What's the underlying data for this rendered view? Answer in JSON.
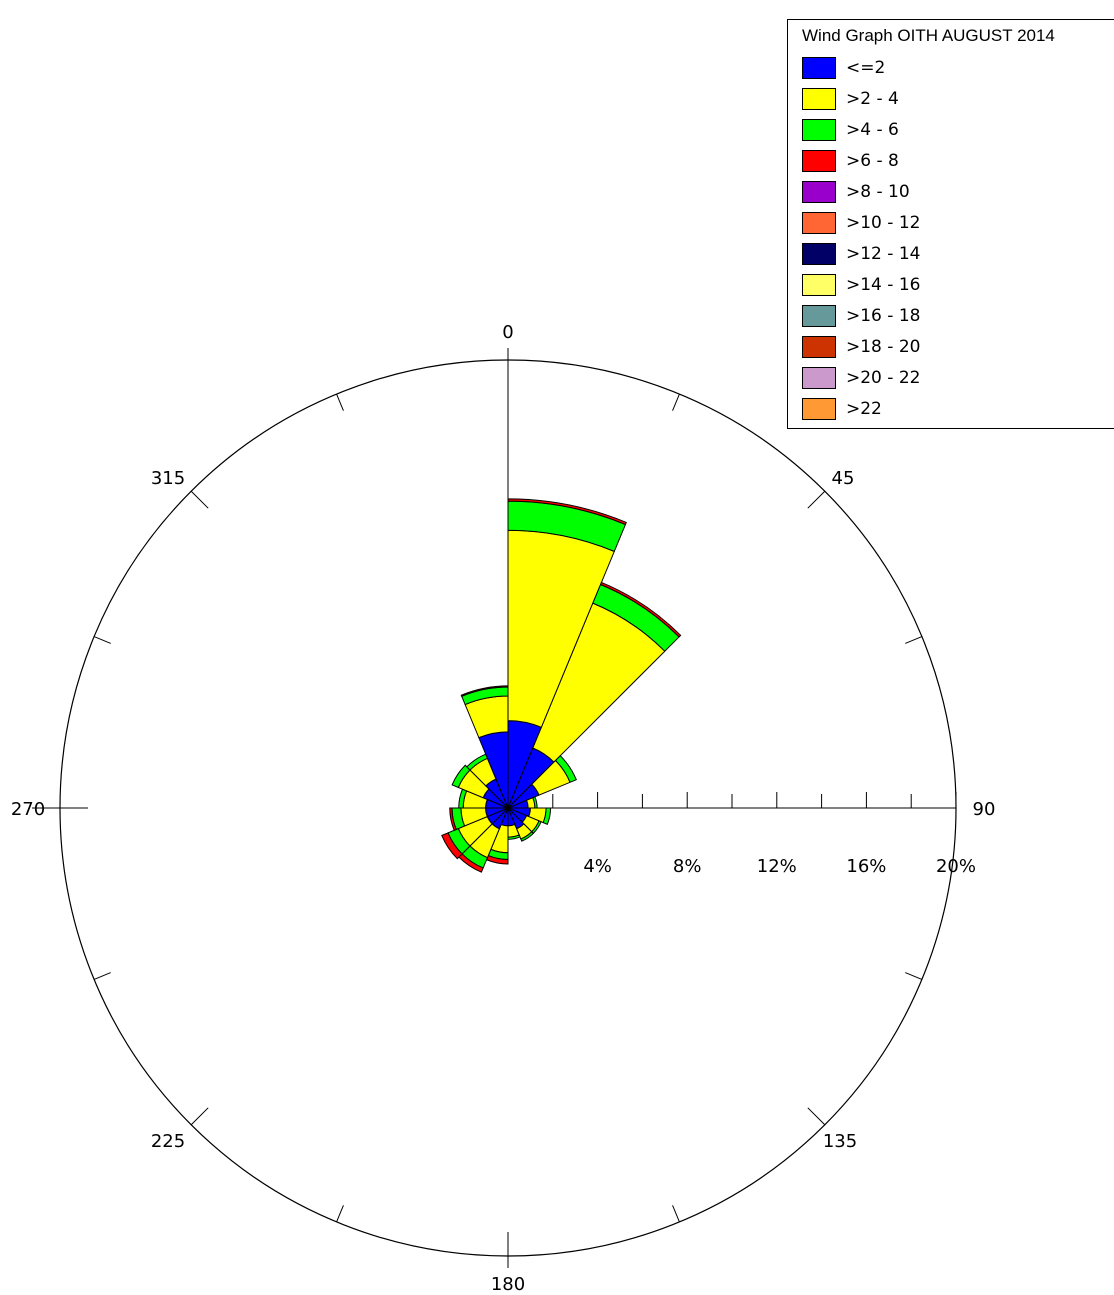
{
  "legend": {
    "title": "Wind Graph OITH AUGUST 2014"
  },
  "chart_data": {
    "type": "polar-bar",
    "title": "Wind Graph OITH AUGUST 2014",
    "direction_labels": [
      "0",
      "45",
      "90",
      "135",
      "180",
      "225",
      "270",
      "315"
    ],
    "radial_axis": {
      "max": 20,
      "ticks": [
        4,
        8,
        12,
        16,
        20
      ],
      "tick_labels": [
        "4%",
        "8%",
        "12%",
        "16%",
        "20%"
      ],
      "unit": "%"
    },
    "speed_bins": [
      {
        "label": "<=2",
        "color": "#0000FF"
      },
      {
        "label": ">2 - 4",
        "color": "#FFFF00"
      },
      {
        "label": ">4 - 6",
        "color": "#00FF00"
      },
      {
        "label": ">6 - 8",
        "color": "#FF0000"
      },
      {
        "label": ">8 - 10",
        "color": "#9900CC"
      },
      {
        "label": ">10 - 12",
        "color": "#FF6633"
      },
      {
        "label": ">12 - 14",
        "color": "#000066"
      },
      {
        "label": ">14 - 16",
        "color": "#FFFF66"
      },
      {
        "label": ">16 - 18",
        "color": "#669999"
      },
      {
        "label": ">18 - 20",
        "color": "#CC3300"
      },
      {
        "label": ">20 - 22",
        "color": "#CC99CC"
      },
      {
        "label": ">22",
        "color": "#FF9933"
      }
    ],
    "sector_width_deg": 22.5,
    "sectors": [
      {
        "dir": 11.25,
        "values": [
          3.9,
          8.5,
          1.3,
          0.1
        ]
      },
      {
        "dir": 33.75,
        "values": [
          2.9,
          7.0,
          0.9,
          0.1
        ]
      },
      {
        "dir": 56.25,
        "values": [
          1.5,
          1.5,
          0.3
        ]
      },
      {
        "dir": 78.75,
        "values": [
          0.9,
          0.3,
          0.1
        ]
      },
      {
        "dir": 101.25,
        "values": [
          1.0,
          0.7,
          0.2
        ]
      },
      {
        "dir": 123.75,
        "values": [
          0.9,
          0.6,
          0.1
        ]
      },
      {
        "dir": 146.25,
        "values": [
          1.0,
          0.5,
          0.1
        ]
      },
      {
        "dir": 168.75,
        "values": [
          0.8,
          0.5,
          0.1
        ]
      },
      {
        "dir": 191.25,
        "values": [
          0.8,
          1.2,
          0.3,
          0.2
        ]
      },
      {
        "dir": 213.75,
        "values": [
          1.0,
          1.4,
          0.5,
          0.2
        ]
      },
      {
        "dir": 236.25,
        "values": [
          1.0,
          1.4,
          0.5,
          0.3
        ]
      },
      {
        "dir": 258.75,
        "values": [
          1.0,
          1.1,
          0.4,
          0.1
        ]
      },
      {
        "dir": 281.25,
        "values": [
          1.0,
          1.0,
          0.2
        ]
      },
      {
        "dir": 303.75,
        "values": [
          1.2,
          1.2,
          0.3
        ]
      },
      {
        "dir": 326.25,
        "values": [
          1.4,
          1.0,
          0.2
        ]
      },
      {
        "dir": 348.75,
        "values": [
          3.4,
          1.6,
          0.4,
          0.05
        ]
      }
    ]
  }
}
